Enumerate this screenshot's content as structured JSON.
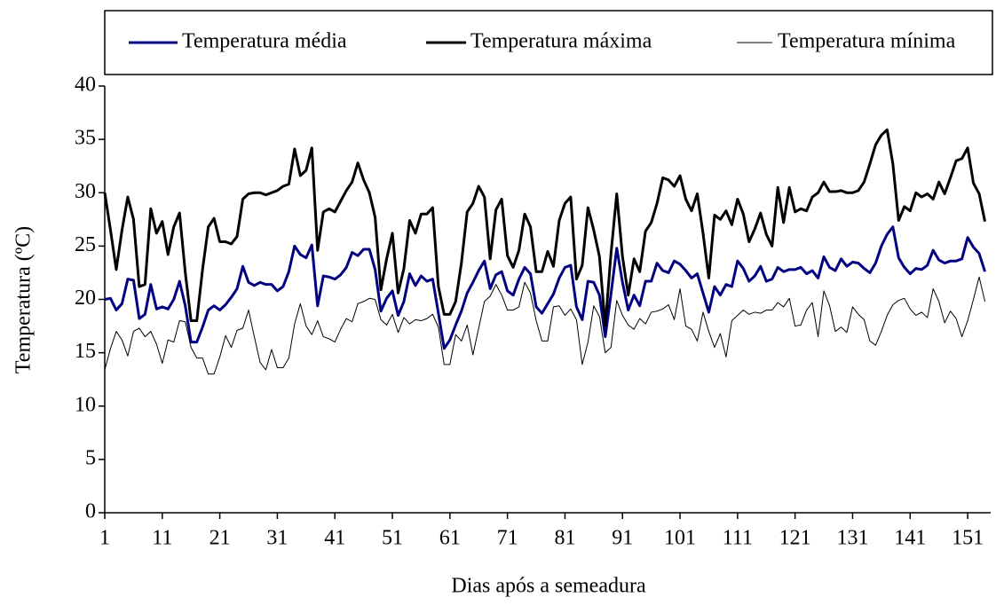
{
  "chart_data": {
    "type": "line",
    "xlabel": "Dias após a semeadura",
    "ylabel": "Temperatura (ºC)",
    "x": [
      1,
      2,
      3,
      4,
      5,
      6,
      7,
      8,
      9,
      10,
      11,
      12,
      13,
      14,
      15,
      16,
      17,
      18,
      19,
      20,
      21,
      22,
      23,
      24,
      25,
      26,
      27,
      28,
      29,
      30,
      31,
      32,
      33,
      34,
      35,
      36,
      37,
      38,
      39,
      40,
      41,
      42,
      43,
      44,
      45,
      46,
      47,
      48,
      49,
      50,
      51,
      52,
      53,
      54,
      55,
      56,
      57,
      58,
      59,
      60,
      61,
      62,
      63,
      64,
      65,
      66,
      67,
      68,
      69,
      70,
      71,
      72,
      73,
      74,
      75,
      76,
      77,
      78,
      79,
      80,
      81,
      82,
      83,
      84,
      85,
      86,
      87,
      88,
      89,
      90,
      91,
      92,
      93,
      94,
      95,
      96,
      97,
      98,
      99,
      100,
      101,
      102,
      103,
      104,
      105,
      106,
      107,
      108,
      109,
      110,
      111,
      112,
      113,
      114,
      115,
      116,
      117,
      118,
      119,
      120,
      121,
      122,
      123,
      124,
      125,
      126,
      127,
      128,
      129,
      130,
      131,
      132,
      133,
      134,
      135,
      136,
      137,
      138,
      139,
      140,
      141,
      142,
      143,
      144,
      145,
      146,
      147,
      148,
      149,
      150,
      151,
      152,
      153,
      154
    ],
    "series": [
      {
        "name": "Temperatura média",
        "color": "#000080",
        "width": 3,
        "values": [
          20,
          20.1,
          19,
          19.6,
          21.9,
          21.8,
          18.2,
          18.6,
          21.4,
          19.1,
          19.3,
          19.1,
          20,
          21.7,
          19.4,
          16,
          16,
          17.4,
          19,
          19.4,
          19,
          19.5,
          20.2,
          21,
          23.1,
          21.6,
          21.3,
          21.6,
          21.4,
          21.4,
          20.8,
          21.2,
          22.6,
          25,
          24.2,
          23.9,
          25.1,
          19.4,
          22.2,
          22.1,
          21.9,
          22.3,
          23,
          24.4,
          24.1,
          24.7,
          24.7,
          22.8,
          18.9,
          20.1,
          20.8,
          18.5,
          19.8,
          22.4,
          21.3,
          22.2,
          21.7,
          21.9,
          18.7,
          15.4,
          16.2,
          17.6,
          18.9,
          20.6,
          21.6,
          22.7,
          23.6,
          21,
          22.3,
          22.6,
          20.8,
          20.4,
          21.9,
          23,
          22.4,
          19.3,
          18.7,
          19.6,
          20.5,
          22,
          23,
          23.2,
          19.3,
          18.1,
          21.7,
          21.6,
          20.4,
          16.5,
          20.5,
          24.8,
          21.6,
          19,
          20.4,
          19.4,
          21.7,
          21.7,
          23.4,
          22.7,
          22.5,
          23.6,
          23.3,
          22.7,
          22,
          22.4,
          20.6,
          18.8,
          21.2,
          20.4,
          21.4,
          21.2,
          23.6,
          22.9,
          21.7,
          22.2,
          23.1,
          21.7,
          21.9,
          23,
          22.6,
          22.8,
          22.8,
          23,
          22.4,
          22.7,
          22,
          24,
          23,
          22.7,
          23.8,
          23.1,
          23.5,
          23.4,
          22.9,
          22.5,
          23.4,
          25,
          26.1,
          26.8,
          23.9,
          23,
          22.4,
          22.9,
          22.8,
          23.2,
          24.6,
          23.7,
          23.4,
          23.6,
          23.6,
          23.8,
          25.8,
          24.9,
          24.3,
          22.6
        ]
      },
      {
        "name": "Temperatura  máxima",
        "color": "#000000",
        "width": 3,
        "values": [
          30,
          26.5,
          22.8,
          26.5,
          29.6,
          27.5,
          21.2,
          21.4,
          28.5,
          26.2,
          27.3,
          24.2,
          26.8,
          28.1,
          22.5,
          18,
          18,
          22.8,
          26.8,
          27.6,
          25.4,
          25.4,
          25.2,
          25.9,
          29.4,
          29.9,
          30,
          30,
          29.8,
          30,
          30.2,
          30.6,
          30.8,
          34.1,
          31.6,
          32.1,
          34.2,
          24.6,
          28.2,
          28.5,
          28.2,
          29.2,
          30.2,
          31,
          32.8,
          31.2,
          30,
          27.7,
          20.9,
          23.8,
          26.2,
          20.6,
          22.9,
          27.4,
          26.2,
          28,
          28,
          28.6,
          21.2,
          18.6,
          18.6,
          19.8,
          23.4,
          28.2,
          29,
          30.6,
          29.6,
          23.8,
          28.4,
          29.4,
          24.1,
          23,
          24.6,
          28,
          26.8,
          22.6,
          22.6,
          24.5,
          23.1,
          27.4,
          29,
          29.6,
          21.9,
          23.2,
          28.6,
          26.5,
          24,
          17.5,
          24.3,
          29.9,
          24,
          20.4,
          23.8,
          22.6,
          26.4,
          27.2,
          29,
          31.4,
          31.2,
          30.6,
          31.6,
          29.4,
          28.3,
          29.9,
          26.2,
          22,
          27.9,
          27.5,
          28.3,
          27,
          29.4,
          28,
          25.4,
          26.6,
          28.1,
          26.1,
          25,
          30.5,
          27.2,
          30.5,
          28.2,
          28.5,
          28.3,
          29.6,
          30,
          31,
          30.1,
          30.1,
          30.2,
          30,
          30,
          30.2,
          31,
          32.7,
          34.5,
          35.4,
          35.9,
          32.7,
          27.4,
          28.7,
          28.3,
          30,
          29.6,
          29.9,
          29.4,
          31,
          29.9,
          31.4,
          33,
          33.2,
          34.2,
          30.9,
          29.9,
          27.3
        ]
      },
      {
        "name": "Temperatura mínima",
        "color": "#000000",
        "width": 1,
        "values": [
          13.4,
          15.4,
          17,
          16.2,
          14.7,
          17,
          17.3,
          16.5,
          17,
          15.8,
          14,
          16.2,
          16,
          18,
          17.9,
          15.5,
          14.5,
          14.5,
          13,
          13,
          14.6,
          16.6,
          15.5,
          17.1,
          17.3,
          19,
          16.5,
          14.1,
          13.4,
          15.3,
          13.6,
          13.6,
          14.5,
          17.7,
          19.6,
          17.5,
          16.7,
          18,
          16.5,
          16.3,
          16,
          17.2,
          18.2,
          17.9,
          19.6,
          19.8,
          20.1,
          20,
          18.1,
          17.6,
          18.6,
          16.9,
          18.3,
          17.7,
          18.1,
          18,
          18.2,
          18.6,
          17.4,
          13.9,
          13.9,
          16.7,
          16.1,
          17.6,
          14.8,
          17.3,
          19.8,
          20.3,
          21.4,
          20.4,
          19,
          19,
          19.3,
          21.6,
          20.6,
          18,
          16.1,
          16.1,
          19.3,
          19.4,
          18.5,
          19.1,
          18.1,
          13.9,
          16,
          19.4,
          18.4,
          15,
          15.5,
          19.9,
          18.5,
          17.6,
          17.2,
          18.2,
          17.7,
          18.8,
          18.9,
          19.1,
          19.5,
          18.1,
          21,
          17.5,
          17.2,
          16.1,
          18.8,
          17,
          15.5,
          16.8,
          14.6,
          18,
          18.5,
          19,
          18.6,
          18.8,
          18.7,
          19,
          19,
          19.7,
          19.3,
          20.1,
          17.5,
          17.6,
          19,
          19.7,
          16.5,
          20.8,
          19.4,
          17,
          17.4,
          16.9,
          19.3,
          18.6,
          18.1,
          16.1,
          15.7,
          17,
          18.5,
          19.5,
          19.9,
          20.1,
          19.1,
          18.5,
          18.8,
          18.3,
          21,
          19.8,
          17.8,
          18.9,
          18.2,
          16.5,
          18,
          20,
          22.1,
          19.8
        ]
      }
    ],
    "xlim": [
      1,
      155
    ],
    "xticks": [
      1,
      11,
      21,
      31,
      41,
      51,
      61,
      71,
      81,
      91,
      101,
      111,
      121,
      131,
      141,
      151
    ],
    "ylim": [
      0,
      40
    ],
    "yticks": [
      0,
      5,
      10,
      15,
      20,
      25,
      30,
      35,
      40
    ],
    "legend": "top"
  }
}
